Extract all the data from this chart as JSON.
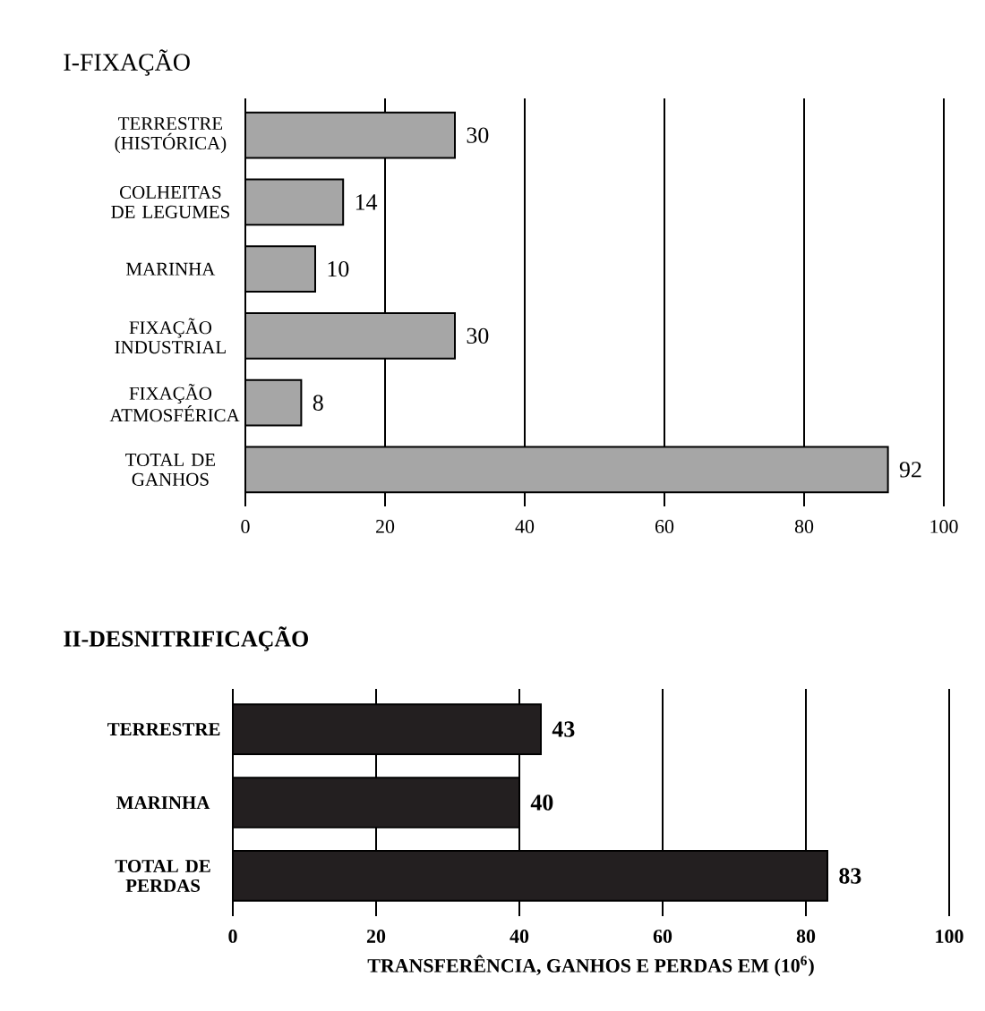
{
  "chart_data": [
    {
      "type": "bar",
      "title": "I-FIXAÇÃO",
      "orientation": "horizontal",
      "categories": [
        "TERRESTRE (HISTÓRICA)",
        "COLHEITAS DE LEGUMES",
        "MARINHA",
        "FIXAÇÃO INDUSTRIAL",
        "FIXAÇÃO ATMOSFÉRICA",
        "TOTAL DE GANHOS"
      ],
      "values": [
        30,
        14,
        10,
        30,
        8,
        92
      ],
      "color": "#a6a6a6",
      "xlim": [
        0,
        100
      ],
      "xticks": [
        0,
        20,
        40,
        60,
        80,
        100
      ],
      "grid": "x",
      "data_labels": true
    },
    {
      "type": "bar",
      "title": "II-DESNITRIFICAÇÃO",
      "orientation": "horizontal",
      "categories": [
        "TERRESTRE",
        "MARINHA",
        "TOTAL DE PERDAS"
      ],
      "values": [
        43,
        40,
        83
      ],
      "color": "#231f20",
      "xlim": [
        0,
        100
      ],
      "xticks": [
        0,
        20,
        40,
        60,
        80,
        100
      ],
      "grid": "x",
      "data_labels": true,
      "xlabel": "TRANSFERÊNCIA, GANHOS E PERDAS EM (10$^{6}$)"
    }
  ]
}
